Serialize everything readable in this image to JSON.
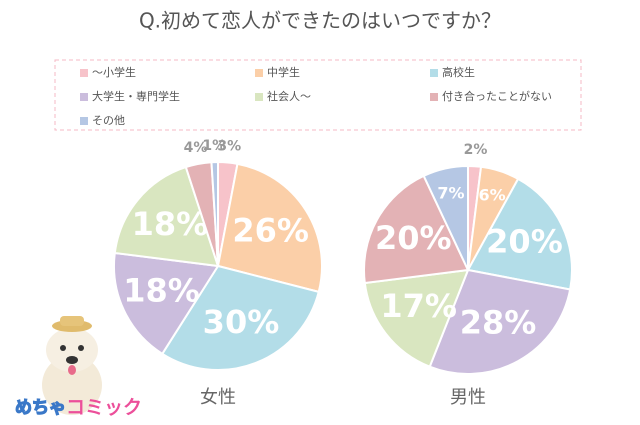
{
  "title": "Q.初めて恋人ができたのはいつですか？",
  "legend": {
    "categories": [
      "～小学生",
      "中学生",
      "高校生",
      "大学生・専門学生",
      "社会人～",
      "付き合ったことがない",
      "その他"
    ],
    "colors": [
      "#f7c3ca",
      "#fbcfa8",
      "#b3dde8",
      "#cbbddd",
      "#d9e6c0",
      "#e3b2b5",
      "#b5c7e4"
    ]
  },
  "chart_data": [
    {
      "type": "pie",
      "label": "女性",
      "values": [
        3,
        26,
        30,
        18,
        18,
        4,
        1
      ],
      "value_labels": [
        "3%",
        "26%",
        "30%",
        "18%",
        "18%",
        "4%",
        "1%"
      ]
    },
    {
      "type": "pie",
      "label": "男性",
      "values": [
        2,
        6,
        20,
        28,
        17,
        20,
        7
      ],
      "value_labels": [
        "2%",
        "6%",
        "20%",
        "28%",
        "17%",
        "20%",
        "7%"
      ]
    }
  ],
  "logo": {
    "part1": "めちゃ",
    "part2": "コミック"
  }
}
